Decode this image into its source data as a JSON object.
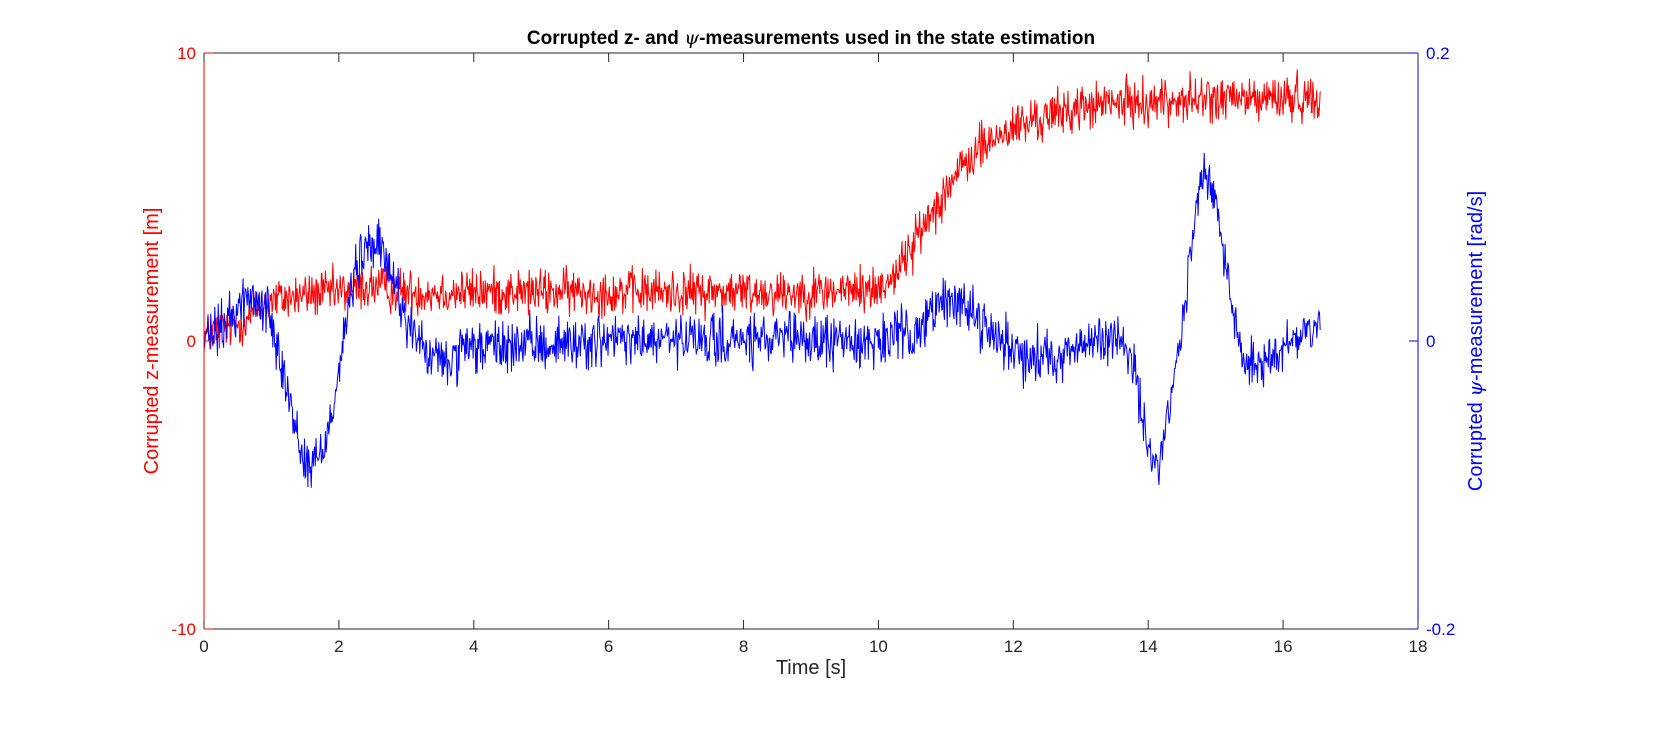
{
  "chart_data": {
    "type": "line",
    "title": {
      "before": "Corrupted z- and ",
      "symbol": "ψ",
      "after": "-measurements used in the state estimation"
    },
    "xlabel": "Time [s]",
    "ylabel_left": "Corrupted z-measurement [m]",
    "ylabel_right": {
      "before": "Corrupted ",
      "symbol": "ψ",
      "after": "-measurement [rad/s]"
    },
    "xlim": [
      0,
      18
    ],
    "ylim_left": [
      -10,
      10
    ],
    "ylim_right": [
      -0.2,
      0.2
    ],
    "x_ticks": [
      0,
      2,
      4,
      6,
      8,
      10,
      12,
      14,
      16,
      18
    ],
    "x_tick_labels": [
      "0",
      "2",
      "4",
      "6",
      "8",
      "10",
      "12",
      "14",
      "16",
      "18"
    ],
    "y_left_ticks": [
      -10,
      0,
      10
    ],
    "y_left_tick_labels": [
      "-10",
      "0",
      "10"
    ],
    "y_right_ticks": [
      -0.2,
      0,
      0.2
    ],
    "y_right_tick_labels": [
      "-0.2",
      "0",
      "0.2"
    ],
    "grid": false,
    "colors": {
      "left": "#ff0000",
      "right": "#0000ff",
      "axes": "#262626"
    },
    "series": [
      {
        "axis": "left",
        "color": "#ff0000",
        "noise": 0.4,
        "points": [
          [
            0,
            0.2
          ],
          [
            0.5,
            0.6
          ],
          [
            1.0,
            1.4
          ],
          [
            1.5,
            1.6
          ],
          [
            2.0,
            1.7
          ],
          [
            2.5,
            1.9
          ],
          [
            3.0,
            1.7
          ],
          [
            5.0,
            1.7
          ],
          [
            7.0,
            1.7
          ],
          [
            9.0,
            1.7
          ],
          [
            10.0,
            1.8
          ],
          [
            10.3,
            2.5
          ],
          [
            10.6,
            3.7
          ],
          [
            11.0,
            5.3
          ],
          [
            11.5,
            6.7
          ],
          [
            12.0,
            7.4
          ],
          [
            12.5,
            7.8
          ],
          [
            13.0,
            8.1
          ],
          [
            13.5,
            8.25
          ],
          [
            14.0,
            8.3
          ],
          [
            14.5,
            8.35
          ],
          [
            15.0,
            8.4
          ],
          [
            15.5,
            8.4
          ],
          [
            16.0,
            8.45
          ],
          [
            16.55,
            8.45
          ]
        ]
      },
      {
        "axis": "right",
        "color": "#0000ff",
        "noise": 0.009,
        "points": [
          [
            0,
            0.0
          ],
          [
            0.3,
            0.01
          ],
          [
            0.6,
            0.03
          ],
          [
            0.9,
            0.025
          ],
          [
            1.1,
            0.0
          ],
          [
            1.3,
            -0.05
          ],
          [
            1.5,
            -0.085
          ],
          [
            1.65,
            -0.085
          ],
          [
            1.8,
            -0.07
          ],
          [
            2.0,
            -0.02
          ],
          [
            2.2,
            0.04
          ],
          [
            2.4,
            0.065
          ],
          [
            2.6,
            0.065
          ],
          [
            2.8,
            0.045
          ],
          [
            3.0,
            0.015
          ],
          [
            3.3,
            -0.01
          ],
          [
            3.6,
            -0.015
          ],
          [
            4.0,
            -0.005
          ],
          [
            6.0,
            0.0
          ],
          [
            8.0,
            0.0
          ],
          [
            10.0,
            0.0
          ],
          [
            10.5,
            0.005
          ],
          [
            10.8,
            0.02
          ],
          [
            11.1,
            0.03
          ],
          [
            11.4,
            0.02
          ],
          [
            11.8,
            0.0
          ],
          [
            12.2,
            -0.01
          ],
          [
            12.6,
            -0.01
          ],
          [
            13.0,
            -0.005
          ],
          [
            13.5,
            0.005
          ],
          [
            13.8,
            -0.02
          ],
          [
            14.0,
            -0.075
          ],
          [
            14.1,
            -0.09
          ],
          [
            14.3,
            -0.055
          ],
          [
            14.5,
            0.01
          ],
          [
            14.65,
            0.07
          ],
          [
            14.8,
            0.12
          ],
          [
            15.0,
            0.095
          ],
          [
            15.2,
            0.04
          ],
          [
            15.4,
            -0.015
          ],
          [
            15.6,
            -0.015
          ],
          [
            15.9,
            -0.01
          ],
          [
            16.2,
            0.005
          ],
          [
            16.55,
            0.01
          ]
        ]
      }
    ]
  }
}
